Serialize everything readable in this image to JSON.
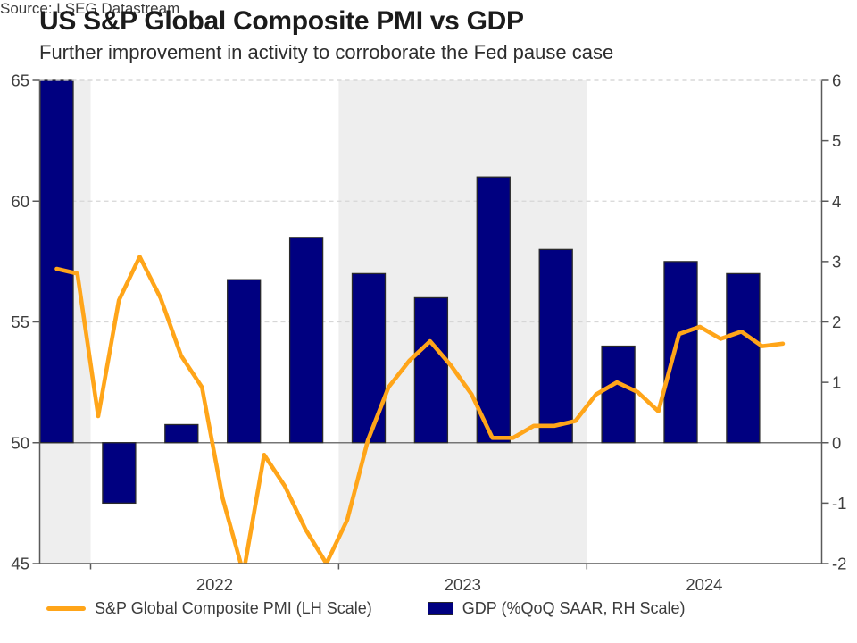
{
  "header": {
    "title": "US S&P Global Composite PMI vs GDP",
    "subtitle": "Further improvement in activity to corroborate the Fed pause case"
  },
  "source": "Source: LSEG Datastream",
  "legend": [
    {
      "label": "S&P Global Composite PMI (LH Scale)",
      "swatch": "line",
      "color": "#FFA519"
    },
    {
      "label": "GDP (%QoQ SAAR, RH Scale)",
      "swatch": "rect",
      "color": "#000080"
    }
  ],
  "colors": {
    "pmi_line": "#FFA519",
    "gdp_bar": "#000080",
    "bar_border": "#2b2b2b",
    "year_band_shade": "#EEEEEE",
    "gridline": "#d6d6d6",
    "axis": "#5a5a5a",
    "zero_line": "#757575",
    "tick_label": "#3f3f3f"
  },
  "chart_data": {
    "type": "bar+line dual-axis",
    "title": "US S&P Global Composite PMI vs GDP",
    "subtitle": "Further improvement in activity to corroborate the Fed pause case",
    "x_axis": {
      "year_labels": [
        "2022",
        "2023",
        "2024"
      ],
      "shaded_years": [
        "2021 (partial, left edge)",
        "2023"
      ],
      "grid": "alternating gray/white calendar-year bands"
    },
    "left_axis": {
      "series": "S&P Global Composite PMI",
      "ticks": [
        65,
        60,
        55,
        50,
        45
      ],
      "range": [
        45,
        65
      ],
      "gridlines_at": [
        65,
        60,
        55
      ]
    },
    "right_axis": {
      "series": "GDP (%QoQ SAAR)",
      "ticks": [
        6,
        5,
        4,
        3,
        2,
        1,
        0,
        -1,
        -2
      ],
      "range": [
        -2,
        6
      ],
      "zero_line": true
    },
    "pmi_line": {
      "name": "S&P Global Composite PMI (LH Scale)",
      "frequency": "monthly",
      "start_month": "2021-11",
      "end_month": "2024-10",
      "values": [
        57.2,
        57.0,
        51.1,
        55.9,
        57.7,
        56.0,
        53.6,
        52.3,
        47.7,
        44.6,
        49.5,
        48.2,
        46.4,
        45.0,
        46.8,
        50.1,
        52.3,
        53.4,
        54.2,
        53.2,
        52.0,
        50.2,
        50.2,
        50.7,
        50.7,
        50.9,
        52.0,
        52.5,
        52.1,
        51.3,
        54.5,
        54.8,
        54.3,
        54.6,
        54.0,
        54.1
      ],
      "note": "dips at Aug 2022 and Dec 2022 touch/clip at bottom of 45-65 scale"
    },
    "gdp_bars": {
      "name": "GDP (%QoQ SAAR, RH Scale)",
      "frequency": "quarterly",
      "quarters": [
        "2021-Q4",
        "2022-Q1",
        "2022-Q2",
        "2022-Q3",
        "2022-Q4",
        "2023-Q1",
        "2023-Q2",
        "2023-Q3",
        "2023-Q4",
        "2024-Q1",
        "2024-Q2",
        "2024-Q3"
      ],
      "values": [
        7.0,
        -1.0,
        0.3,
        2.7,
        3.4,
        2.8,
        2.4,
        4.4,
        3.2,
        1.6,
        3.0,
        2.8
      ],
      "note": "first bar exceeds axis max and is clipped at 6"
    }
  }
}
